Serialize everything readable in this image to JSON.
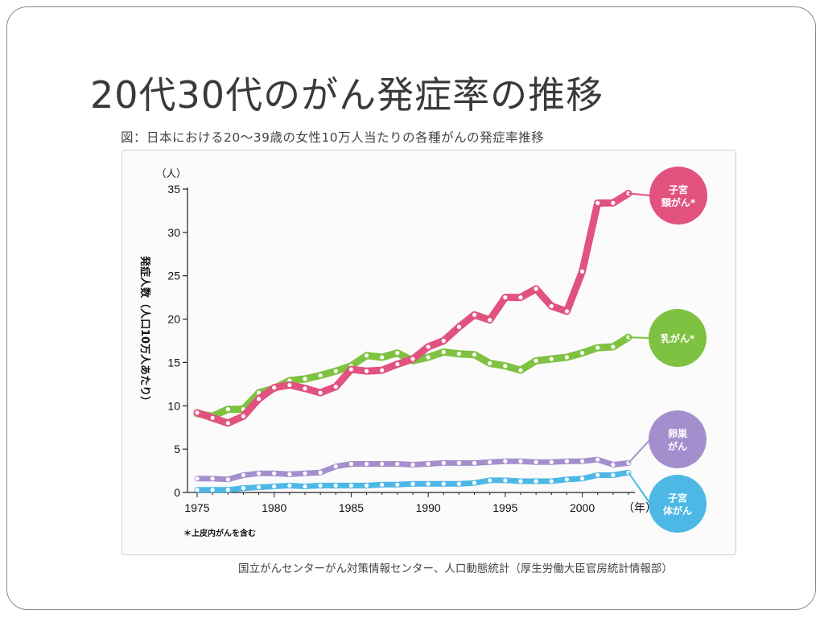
{
  "slide": {
    "title": "20代30代のがん発症率の推移",
    "caption": "図：日本における20～39歳の女性10万人当たりの各種がんの発症率推移",
    "source": "国立がんセンターがん対策情報センター、人口動態統計（厚生労働大臣官房統計情報部）"
  },
  "chart_data": {
    "type": "line",
    "y_unit": "（人）",
    "x_unit": "（年）",
    "ylabel": "発症人数（人口10万人あたり）",
    "ylim": [
      0,
      35
    ],
    "yticks": [
      0,
      5,
      10,
      15,
      20,
      25,
      30,
      35
    ],
    "xlim": [
      1975,
      2003
    ],
    "xticks": [
      1975,
      1980,
      1985,
      1990,
      1995,
      2000
    ],
    "footnote": "＊上皮内がんを含む",
    "grid": false,
    "x": [
      1975,
      1976,
      1977,
      1978,
      1979,
      1980,
      1981,
      1982,
      1983,
      1984,
      1985,
      1986,
      1987,
      1988,
      1989,
      1990,
      1991,
      1992,
      1993,
      1994,
      1995,
      1996,
      1997,
      1998,
      1999,
      2000,
      2001,
      2002,
      2003
    ],
    "series": [
      {
        "name": "子宮頸がん＊",
        "color": "#e2527f",
        "values": [
          9.2,
          8.6,
          8.0,
          8.8,
          10.8,
          12.1,
          12.4,
          12.0,
          11.5,
          12.2,
          14.2,
          14.0,
          14.1,
          14.8,
          15.4,
          16.8,
          17.5,
          19.1,
          20.5,
          19.9,
          22.5,
          22.5,
          23.5,
          21.5,
          20.9,
          25.5,
          33.4,
          33.4,
          34.5
        ]
      },
      {
        "name": "乳がん＊",
        "color": "#7fc241",
        "values": [
          9.1,
          8.8,
          9.6,
          9.6,
          11.5,
          12.0,
          12.9,
          13.1,
          13.5,
          14.0,
          14.6,
          15.8,
          15.6,
          16.1,
          15.2,
          15.6,
          16.2,
          16.0,
          15.9,
          14.9,
          14.6,
          14.1,
          15.2,
          15.4,
          15.6,
          16.1,
          16.7,
          16.8,
          17.9
        ]
      },
      {
        "name": "卵巣がん",
        "color": "#a48fce",
        "values": [
          1.6,
          1.6,
          1.5,
          2.0,
          2.2,
          2.2,
          2.1,
          2.2,
          2.3,
          3.0,
          3.3,
          3.3,
          3.3,
          3.3,
          3.2,
          3.3,
          3.4,
          3.4,
          3.4,
          3.5,
          3.6,
          3.6,
          3.5,
          3.5,
          3.6,
          3.6,
          3.8,
          3.2,
          3.4
        ]
      },
      {
        "name": "子宮体がん",
        "color": "#4db8e6",
        "values": [
          0.3,
          0.3,
          0.3,
          0.5,
          0.6,
          0.7,
          0.8,
          0.7,
          0.8,
          0.8,
          0.8,
          0.8,
          0.9,
          0.9,
          1.0,
          1.0,
          1.0,
          1.0,
          1.1,
          1.4,
          1.4,
          1.3,
          1.3,
          1.3,
          1.5,
          1.6,
          2.0,
          2.0,
          2.3
        ]
      }
    ],
    "bubbles": [
      {
        "line1": "子宮",
        "line2": "頸がん*"
      },
      {
        "line1": "乳がん*",
        "line2": ""
      },
      {
        "line1": "卵巣",
        "line2": "がん"
      },
      {
        "line1": "子宮",
        "line2": "体がん"
      }
    ]
  }
}
